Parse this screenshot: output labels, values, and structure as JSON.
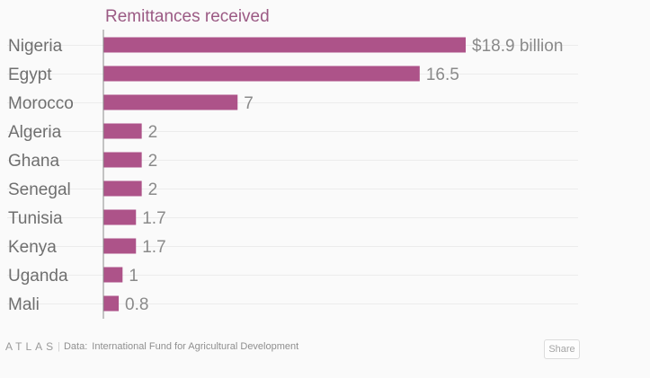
{
  "chart_data": {
    "type": "bar",
    "orientation": "horizontal",
    "title": "Remittances received",
    "categories": [
      "Nigeria",
      "Egypt",
      "Morocco",
      "Algeria",
      "Ghana",
      "Senegal",
      "Tunisia",
      "Kenya",
      "Uganda",
      "Mali"
    ],
    "values": [
      18.9,
      16.5,
      7,
      2,
      2,
      2,
      1.7,
      1.7,
      1,
      0.8
    ],
    "value_labels": [
      "$18.9 billion",
      "16.5",
      "7",
      "2",
      "2",
      "2",
      "1.7",
      "1.7",
      "1",
      "0.8"
    ],
    "unit": "billion USD",
    "xlim": [
      0,
      18.9
    ],
    "bar_color": "#ad5389",
    "gridlines": true
  },
  "footer": {
    "brand": "ATLAS",
    "separator": "|",
    "source_label": "Data:",
    "source_text": "International Fund for Agricultural Development"
  },
  "share": {
    "label": "Share"
  },
  "colors": {
    "bar": "#ad5389",
    "title": "#9b5a84",
    "background": "#fafafa"
  }
}
